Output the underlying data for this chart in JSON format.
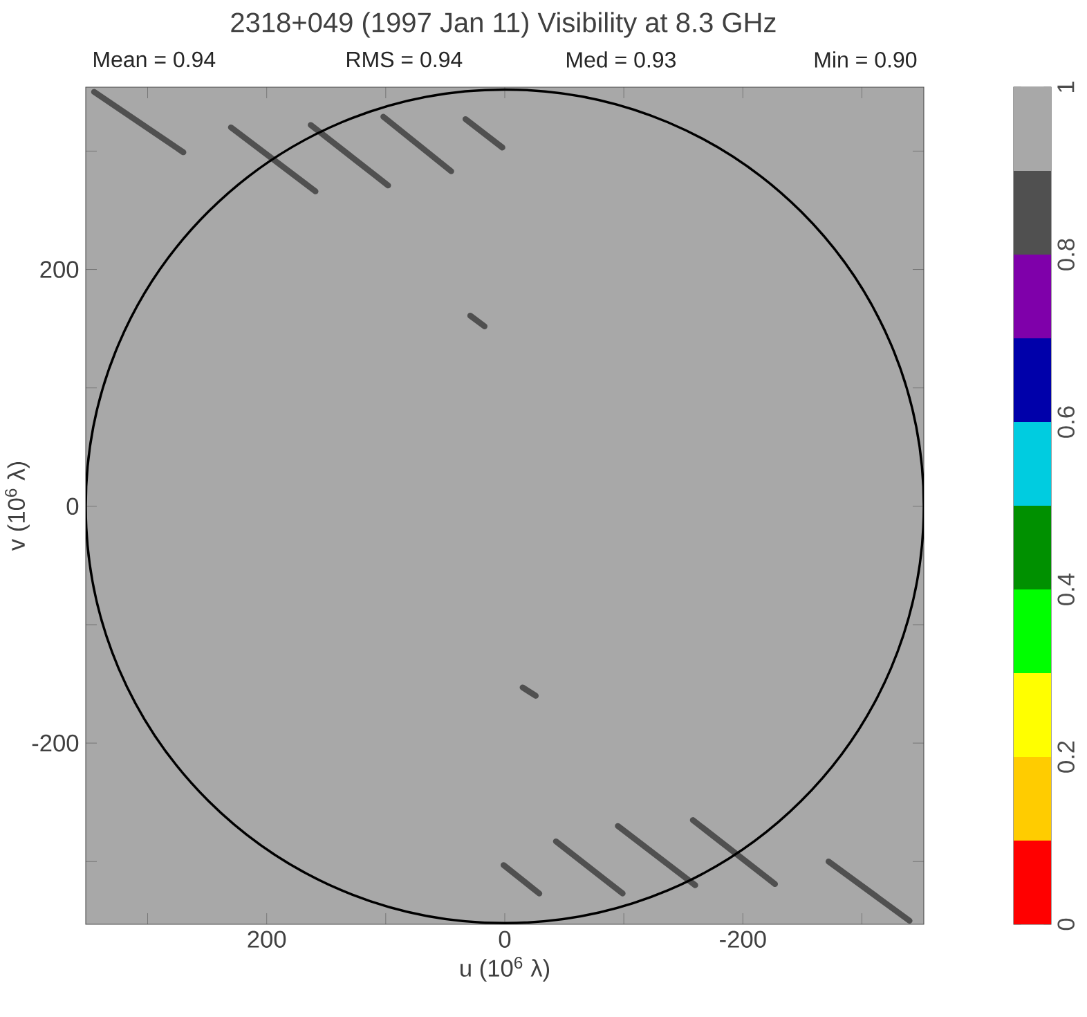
{
  "chart_data": {
    "type": "scatter",
    "title": "2318+049  (1997 Jan 11)    Visibility at  8.3 GHz",
    "annotations": [
      "Mean =  0.94",
      "RMS =  0.94",
      "Med =  0.93",
      "Min =  0.90"
    ],
    "xlabel": "u  (10$^{6}$ λ)",
    "ylabel": "v  (10$^{6}$ λ)",
    "xlim": [
      352,
      -352
    ],
    "ylim": [
      -353,
      354
    ],
    "xticks": [
      {
        "value": 300,
        "label": null
      },
      200,
      {
        "value": 100,
        "label": null
      },
      0,
      {
        "value": -100,
        "label": null
      },
      -200,
      {
        "value": -300,
        "label": null
      }
    ],
    "yticks": [
      {
        "value": -300,
        "label": null
      },
      -200,
      {
        "value": -100,
        "label": null
      },
      0,
      {
        "value": 100,
        "label": null
      },
      200,
      {
        "value": 300,
        "label": null
      }
    ],
    "clim": [
      0,
      1
    ],
    "cticks": [
      0,
      0.2,
      0.4,
      0.6,
      0.8,
      1
    ],
    "series": [
      {
        "type": "line",
        "color": "#505050",
        "x": [
          345,
          270
        ],
        "values": [
          350,
          299
        ]
      },
      {
        "type": "line",
        "color": "#505050",
        "x": [
          230,
          159
        ],
        "values": [
          320,
          266
        ]
      },
      {
        "type": "line",
        "color": "#505050",
        "x": [
          163,
          98
        ],
        "values": [
          322,
          271
        ]
      },
      {
        "type": "line",
        "color": "#505050",
        "x": [
          102,
          45
        ],
        "values": [
          329,
          283
        ]
      },
      {
        "type": "line",
        "color": "#505050",
        "x": [
          33,
          2
        ],
        "values": [
          327,
          303
        ]
      },
      {
        "type": "line",
        "color": "#505050",
        "x": [
          29,
          17
        ],
        "values": [
          161,
          152
        ]
      },
      {
        "type": "line",
        "color": "#505050",
        "x": [
          -15,
          -26
        ],
        "values": [
          -153,
          -160
        ]
      },
      {
        "type": "line",
        "color": "#505050",
        "x": [
          1,
          -29
        ],
        "values": [
          -303,
          -327
        ]
      },
      {
        "type": "line",
        "color": "#505050",
        "x": [
          -43,
          -99
        ],
        "values": [
          -283,
          -327
        ]
      },
      {
        "type": "line",
        "color": "#505050",
        "x": [
          -95,
          -160
        ],
        "values": [
          -270,
          -320
        ]
      },
      {
        "type": "line",
        "color": "#505050",
        "x": [
          -158,
          -227
        ],
        "values": [
          -265,
          -319
        ]
      },
      {
        "type": "line",
        "color": "#505050",
        "x": [
          -272,
          -340
        ],
        "values": [
          -300,
          -350
        ]
      }
    ]
  }
}
